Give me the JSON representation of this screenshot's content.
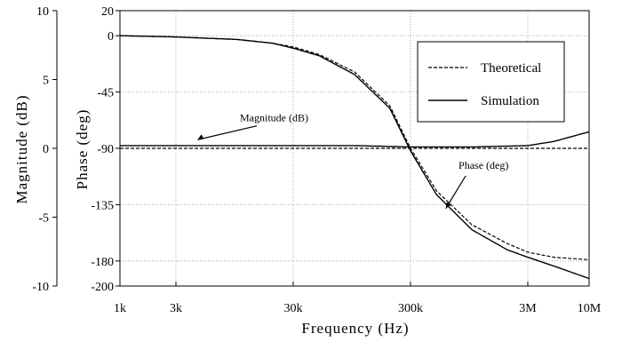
{
  "chart_data": {
    "type": "line",
    "xlabel": "Frequency (Hz)",
    "ylabel_left": "Magnitude (dB)",
    "ylabel_right": "Phase (deg)",
    "x_scale": "log",
    "xlim": [
      1000,
      10000000
    ],
    "xticks": [
      {
        "value": 1000,
        "label": "1k"
      },
      {
        "value": 3000,
        "label": "3k"
      },
      {
        "value": 30000,
        "label": "30k"
      },
      {
        "value": 300000,
        "label": "300k"
      },
      {
        "value": 3000000,
        "label": "3M"
      },
      {
        "value": 10000000,
        "label": "10M"
      }
    ],
    "ylim_magnitude": [
      -10,
      10
    ],
    "yticks_magnitude": [
      "10",
      "5",
      "0",
      "-5",
      "-10"
    ],
    "ylim_phase": [
      -200,
      20
    ],
    "yticks_phase": [
      "20",
      "0",
      "-45",
      "-90",
      "-135",
      "-180",
      "-200"
    ],
    "grid": true,
    "legend_position": "top-right",
    "series": [
      {
        "name": "Theoretical",
        "quantity": "phase",
        "style": "dashed",
        "x": [
          1000,
          3000,
          10000,
          20000,
          30000,
          50000,
          100000,
          200000,
          300000,
          500000,
          1000000,
          2000000,
          3000000,
          5000000,
          10000000
        ],
        "y": [
          0,
          -1,
          -3,
          -6,
          -9,
          -15,
          -29,
          -56,
          -90,
          -124,
          -151,
          -166,
          -173,
          -177,
          -179
        ]
      },
      {
        "name": "Simulation",
        "quantity": "phase",
        "style": "solid",
        "x": [
          1000,
          3000,
          10000,
          20000,
          30000,
          50000,
          100000,
          200000,
          300000,
          500000,
          1000000,
          2000000,
          3000000,
          5000000,
          10000000
        ],
        "y": [
          0,
          -1,
          -3,
          -6,
          -10,
          -16,
          -31,
          -58,
          -92,
          -127,
          -155,
          -171,
          -177,
          -184,
          -194
        ]
      },
      {
        "name": "Theoretical",
        "quantity": "magnitude",
        "style": "dashed",
        "x": [
          1000,
          10000,
          100000,
          1000000,
          3000000,
          10000000
        ],
        "y": [
          0,
          0,
          0,
          0,
          0,
          0
        ]
      },
      {
        "name": "Simulation",
        "quantity": "magnitude",
        "style": "solid",
        "x": [
          1000,
          10000,
          100000,
          300000,
          1000000,
          3000000,
          5000000,
          10000000
        ],
        "y": [
          0.2,
          0.2,
          0.2,
          0.1,
          0.1,
          0.2,
          0.5,
          1.2
        ]
      }
    ],
    "annotations": [
      {
        "text": "Magnitude (dB)",
        "x": 10000,
        "y_magnitude": 1.7
      },
      {
        "text": "Phase (deg)",
        "x": 1300000,
        "y_phase": -112
      }
    ]
  }
}
